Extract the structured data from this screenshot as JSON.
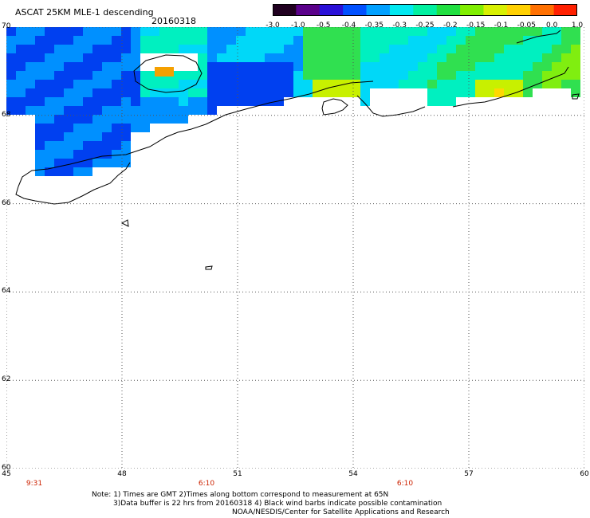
{
  "header": {
    "title": "ASCAT 25KM MLE-1 descending",
    "date": "20160318"
  },
  "colorbar": {
    "labels": [
      "-3.0",
      "-1.0",
      "-0.5",
      "-0.4",
      "-0.35",
      "-0.3",
      "-0.25",
      "-0.2",
      "-0.15",
      "-0.1",
      "-0.05",
      "0.0",
      "1.0"
    ],
    "colors": [
      "#200020",
      "#5a008a",
      "#2a10d8",
      "#0050ff",
      "#00a0ff",
      "#00e8f0",
      "#00f0a0",
      "#20e040",
      "#80ee00",
      "#d8f000",
      "#ffd000",
      "#ff7000",
      "#ff2000"
    ]
  },
  "map": {
    "lat_labels": [
      "70",
      "68",
      "66",
      "64",
      "62",
      "60"
    ],
    "lon_labels": [
      "45",
      "48",
      "51",
      "54",
      "57",
      "60"
    ],
    "time_labels": [
      "9:31",
      "6:10",
      "6:10"
    ]
  },
  "notes": {
    "line1": "Note: 1) Times are GMT 2)Times along bottom correspond to measurement at 65N",
    "line2": "3)Data buffer is 22 hrs from 20160318 4) Black wind barbs indicate possible contamination",
    "line3": "NOAA/NESDIS/Center for Satellite Applications and Research"
  }
}
